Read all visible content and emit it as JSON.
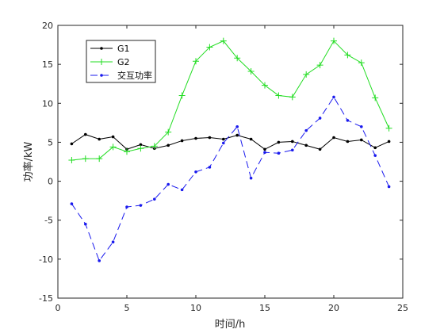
{
  "chart_data": {
    "type": "line",
    "title": "",
    "xlabel": "时间/h",
    "ylabel": "功率/kW",
    "xlim": [
      0,
      25
    ],
    "ylim": [
      -15,
      20
    ],
    "xticks": [
      0,
      5,
      10,
      15,
      20,
      25
    ],
    "yticks": [
      -15,
      -10,
      -5,
      0,
      5,
      10,
      15,
      20
    ],
    "grid": false,
    "legend_position": "top-left",
    "x": [
      1,
      2,
      3,
      4,
      5,
      6,
      7,
      8,
      9,
      10,
      11,
      12,
      13,
      14,
      15,
      16,
      17,
      18,
      19,
      20,
      21,
      22,
      23,
      24
    ],
    "series": [
      {
        "name": "G1",
        "color": "#000000",
        "marker": "dot",
        "line_style": "solid",
        "values": [
          4.8,
          6.0,
          5.4,
          5.7,
          4.1,
          4.7,
          4.2,
          4.6,
          5.2,
          5.5,
          5.6,
          5.4,
          5.9,
          5.4,
          4.1,
          5.0,
          5.1,
          4.6,
          4.1,
          5.6,
          5.1,
          5.3,
          4.3,
          5.1
        ]
      },
      {
        "name": "G2",
        "color": "#22dd22",
        "marker": "plus",
        "line_style": "solid",
        "values": [
          2.7,
          2.9,
          2.9,
          4.4,
          3.8,
          4.2,
          4.5,
          6.3,
          11.0,
          15.4,
          17.2,
          18.0,
          15.8,
          14.1,
          12.3,
          11.0,
          10.8,
          13.7,
          14.9,
          18.0,
          16.2,
          15.2,
          10.7,
          6.8
        ]
      },
      {
        "name": "交互功率",
        "color": "#1a1aee",
        "marker": "dot",
        "line_style": "dashed",
        "values": [
          -2.9,
          -5.5,
          -10.2,
          -7.8,
          -3.3,
          -3.1,
          -2.3,
          -0.4,
          -1.1,
          1.2,
          1.8,
          4.9,
          7.0,
          0.4,
          3.7,
          3.6,
          4.0,
          6.5,
          8.1,
          10.8,
          7.8,
          7.0,
          3.3,
          -0.7
        ]
      }
    ]
  }
}
